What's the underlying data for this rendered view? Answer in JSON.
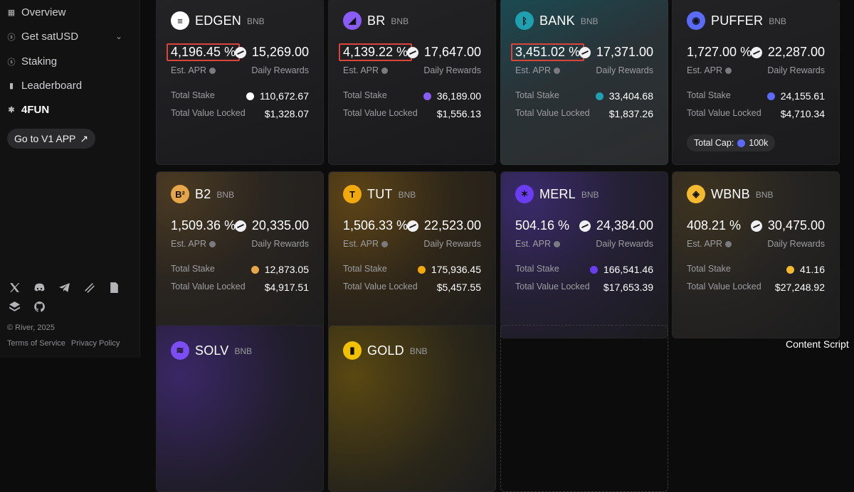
{
  "sidebar": {
    "nav": [
      {
        "label": "Overview",
        "icon": "grid-icon"
      },
      {
        "label": "Get satUSD",
        "icon": "dollar-circle-icon"
      },
      {
        "label": "Staking",
        "icon": "dollar-circle-icon"
      },
      {
        "label": "Leaderboard",
        "icon": "bar-chart-icon"
      },
      {
        "label": "4FUN",
        "icon": "bug-icon"
      }
    ],
    "v1_button": "Go to V1 APP",
    "v1_arrow": "↗",
    "social_icons": [
      "x-icon",
      "discord-icon",
      "telegram-icon",
      "mirror-icon",
      "docs-icon",
      "layers-icon",
      "github-icon"
    ],
    "copyright": "© River, 2025",
    "terms": "Terms of Service",
    "privacy": "Privacy Policy"
  },
  "labels": {
    "est_apr": "Est. APR",
    "daily_rewards": "Daily Rewards",
    "total_stake": "Total Stake",
    "tvl": "Total Value Locked",
    "total_cap": "Total Cap:"
  },
  "cards": [
    {
      "name": "EDGEN",
      "chain": "BNB",
      "apr": "4,196.45 %",
      "rewards": "15,269.00",
      "stake": "110,672.67",
      "tvl": "$1,328.07",
      "logo_color": "#ffffff",
      "highlight": true
    },
    {
      "name": "BR",
      "chain": "BNB",
      "apr": "4,139.22 %",
      "rewards": "17,647.00",
      "stake": "36,189.00",
      "tvl": "$1,556.13",
      "logo_color": "#8a5cf6",
      "highlight": true
    },
    {
      "name": "BANK",
      "chain": "BNB",
      "apr": "3,451.02 %",
      "rewards": "17,371.00",
      "stake": "33,404.68",
      "tvl": "$1,837.26",
      "logo_color": "#1fa0b0",
      "highlight": true
    },
    {
      "name": "PUFFER",
      "chain": "BNB",
      "apr": "1,727.00 %",
      "rewards": "22,287.00",
      "stake": "24,155.61",
      "tvl": "$4,710.34",
      "logo_color": "#5b6bf7",
      "cap": "100k"
    },
    {
      "name": "B2",
      "chain": "BNB",
      "apr": "1,509.36 %",
      "rewards": "20,335.00",
      "stake": "12,873.05",
      "tvl": "$4,917.51",
      "logo_color": "#e7a64a"
    },
    {
      "name": "TUT",
      "chain": "BNB",
      "apr": "1,506.33 %",
      "rewards": "22,523.00",
      "stake": "175,936.45",
      "tvl": "$5,457.55",
      "logo_color": "#f2a90c"
    },
    {
      "name": "MERL",
      "chain": "BNB",
      "apr": "504.16 %",
      "rewards": "24,384.00",
      "stake": "166,541.46",
      "tvl": "$17,653.39",
      "logo_color": "#6b3df0"
    },
    {
      "name": "WBNB",
      "chain": "BNB",
      "apr": "408.21 %",
      "rewards": "30,475.00",
      "stake": "41.16",
      "tvl": "$27,248.92",
      "logo_color": "#f3ba2f"
    },
    {
      "name": "SOLV",
      "chain": "BNB",
      "logo_color": "#7b4df2"
    },
    {
      "name": "GOLD",
      "chain": "BNB",
      "logo_color": "#f2c200"
    }
  ],
  "overlay": "Content Script"
}
